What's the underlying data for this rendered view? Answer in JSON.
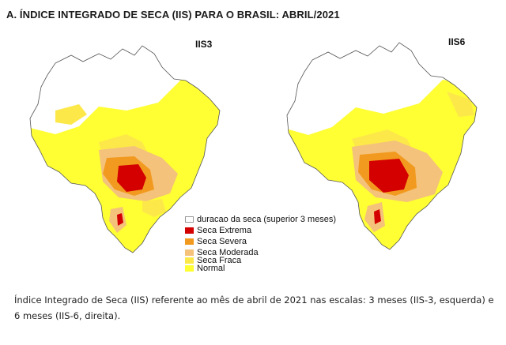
{
  "figure": {
    "title": "A. ÍNDICE INTEGRADO DE SECA (IIS) PARA O BRASIL:  ABRIL/2021",
    "maps": [
      {
        "label": "IIS3"
      },
      {
        "label": "IIS6"
      }
    ]
  },
  "legend": [
    {
      "label": "duracao da seca (superior 3 meses)",
      "color": "#ffffff",
      "border": "#999999"
    },
    {
      "label": "Seca Extrema",
      "color": "#d40000"
    },
    {
      "label": "Seca Severa",
      "color": "#f29a1f"
    },
    {
      "label": "Seca Moderada",
      "color": "#f4c27a"
    },
    {
      "label": "Seca Fraca",
      "color": "#fde84a"
    },
    {
      "label": "Normal",
      "color": "#ffff33"
    }
  ],
  "caption": "Índice Integrado de Seca (IIS) referente ao mês de abril de 2021 nas escalas: 3 meses (IIS-3, esquerda) e 6 meses (IIS-6, direita)."
}
